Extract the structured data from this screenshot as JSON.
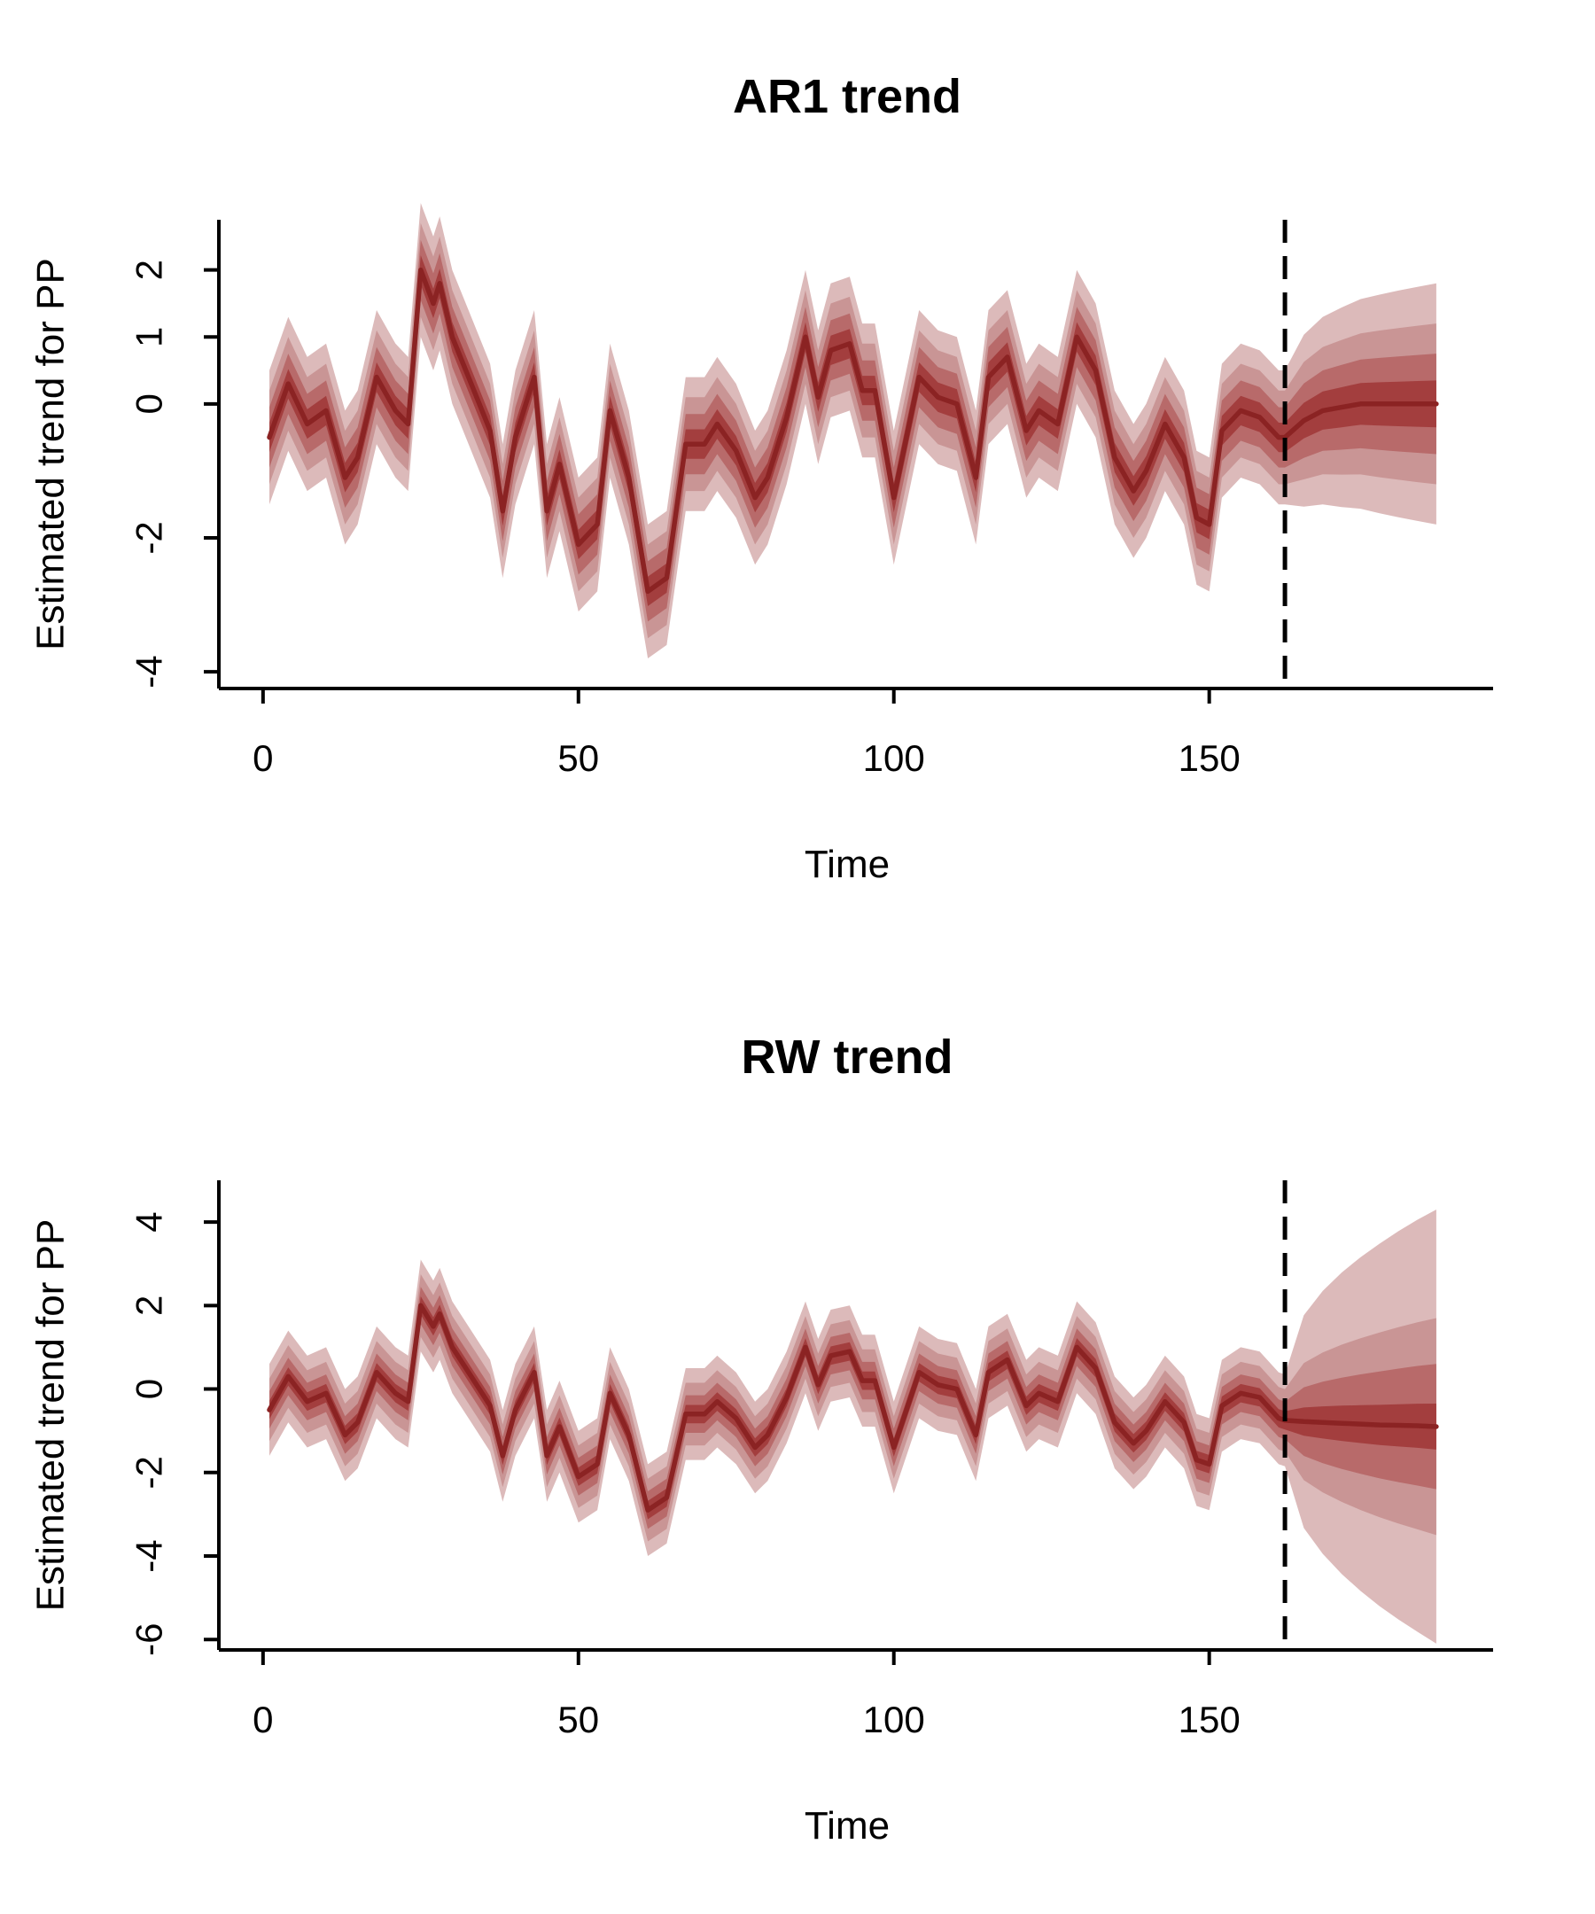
{
  "chart_data": [
    {
      "type": "line",
      "title": "AR1 trend",
      "xlabel": "Time",
      "ylabel": "Estimated trend for PP",
      "xlim": [
        -7,
        195
      ],
      "ylim": [
        -4.25,
        2.75
      ],
      "xticks": [
        0,
        50,
        100,
        150
      ],
      "yticks": [
        -4,
        -2,
        0,
        1,
        2
      ],
      "ytick_labels": [
        "-4",
        "-2",
        "0",
        "1",
        "2"
      ],
      "forecast_start": 162,
      "colors": {
        "median": "#8B2323",
        "band_outer": "#DCBABA",
        "band_mid2": "#C99595",
        "band_mid1": "#B86A6A",
        "band_inner": "#A33E3E"
      },
      "band_half_widths": [
        1.0,
        0.7,
        0.45,
        0.22
      ],
      "forecast_band_half_widths": [
        1.8,
        1.2,
        0.75,
        0.35
      ],
      "series": [
        {
          "x": [
            1,
            4,
            7,
            10,
            13,
            15,
            18,
            21,
            23,
            25,
            27,
            28,
            30,
            33,
            36,
            38,
            40,
            43,
            45,
            47,
            50,
            53,
            55,
            58,
            61,
            64,
            67,
            70,
            72,
            75,
            78,
            80,
            83,
            86,
            88,
            90,
            93,
            95,
            97,
            100,
            104,
            107,
            110,
            113,
            115,
            118,
            121,
            123,
            126,
            129,
            132,
            135,
            138,
            140,
            143,
            146,
            148,
            150,
            152,
            155,
            158,
            161,
            162,
            165,
            168,
            171,
            174,
            177,
            180,
            183,
            186
          ],
          "y": [
            -0.5,
            0.3,
            -0.3,
            -0.1,
            -1.1,
            -0.8,
            0.4,
            -0.1,
            -0.3,
            2.0,
            1.5,
            1.8,
            1.0,
            0.3,
            -0.4,
            -1.6,
            -0.5,
            0.4,
            -1.6,
            -0.9,
            -2.1,
            -1.8,
            -0.1,
            -1.1,
            -2.8,
            -2.6,
            -0.6,
            -0.6,
            -0.3,
            -0.7,
            -1.4,
            -1.1,
            -0.2,
            1.0,
            0.1,
            0.8,
            0.9,
            0.2,
            0.2,
            -1.4,
            0.4,
            0.1,
            0.0,
            -1.1,
            0.4,
            0.7,
            -0.4,
            -0.1,
            -0.3,
            1.0,
            0.5,
            -0.8,
            -1.3,
            -1.0,
            -0.3,
            -0.8,
            -1.7,
            -1.8,
            -0.4,
            -0.1,
            -0.2,
            -0.5,
            -0.5,
            -0.25,
            -0.1,
            -0.05,
            0.0,
            0.0,
            0.0,
            0.0,
            0.0
          ]
        }
      ]
    },
    {
      "type": "line",
      "title": "RW trend",
      "xlabel": "Time",
      "ylabel": "Estimated trend for PP",
      "xlim": [
        -7,
        195
      ],
      "ylim": [
        -6.25,
        5.0
      ],
      "xticks": [
        0,
        50,
        100,
        150
      ],
      "yticks": [
        -6,
        -4,
        -2,
        0,
        2,
        4
      ],
      "ytick_labels": [
        "-6",
        "-4",
        "-2",
        "0",
        "2",
        "4"
      ],
      "forecast_start": 162,
      "colors": {
        "median": "#8B2323",
        "band_outer": "#DCBABA",
        "band_mid2": "#C99595",
        "band_mid1": "#B86A6A",
        "band_inner": "#A33E3E"
      },
      "band_half_widths": [
        1.1,
        0.75,
        0.45,
        0.22
      ],
      "forecast_band_half_widths": [
        5.2,
        2.6,
        1.5,
        0.55
      ],
      "series": [
        {
          "x": [
            1,
            4,
            7,
            10,
            13,
            15,
            18,
            21,
            23,
            25,
            27,
            28,
            30,
            33,
            36,
            38,
            40,
            43,
            45,
            47,
            50,
            53,
            55,
            58,
            61,
            64,
            67,
            70,
            72,
            75,
            78,
            80,
            83,
            86,
            88,
            90,
            93,
            95,
            97,
            100,
            104,
            107,
            110,
            113,
            115,
            118,
            121,
            123,
            126,
            129,
            132,
            135,
            138,
            140,
            143,
            146,
            148,
            150,
            152,
            155,
            158,
            161,
            162,
            165,
            168,
            171,
            174,
            177,
            180,
            183,
            186
          ],
          "y": [
            -0.5,
            0.3,
            -0.3,
            -0.1,
            -1.1,
            -0.8,
            0.4,
            -0.1,
            -0.3,
            2.0,
            1.5,
            1.8,
            1.0,
            0.3,
            -0.4,
            -1.6,
            -0.5,
            0.4,
            -1.6,
            -0.9,
            -2.1,
            -1.8,
            -0.1,
            -1.1,
            -2.9,
            -2.6,
            -0.6,
            -0.6,
            -0.3,
            -0.7,
            -1.4,
            -1.1,
            -0.2,
            1.0,
            0.1,
            0.8,
            0.9,
            0.2,
            0.2,
            -1.4,
            0.4,
            0.1,
            0.0,
            -1.1,
            0.4,
            0.7,
            -0.4,
            -0.1,
            -0.3,
            1.0,
            0.5,
            -0.8,
            -1.3,
            -1.0,
            -0.3,
            -0.8,
            -1.7,
            -1.8,
            -0.4,
            -0.1,
            -0.2,
            -0.7,
            -0.75,
            -0.78,
            -0.8,
            -0.82,
            -0.84,
            -0.86,
            -0.87,
            -0.88,
            -0.9
          ]
        }
      ]
    }
  ]
}
